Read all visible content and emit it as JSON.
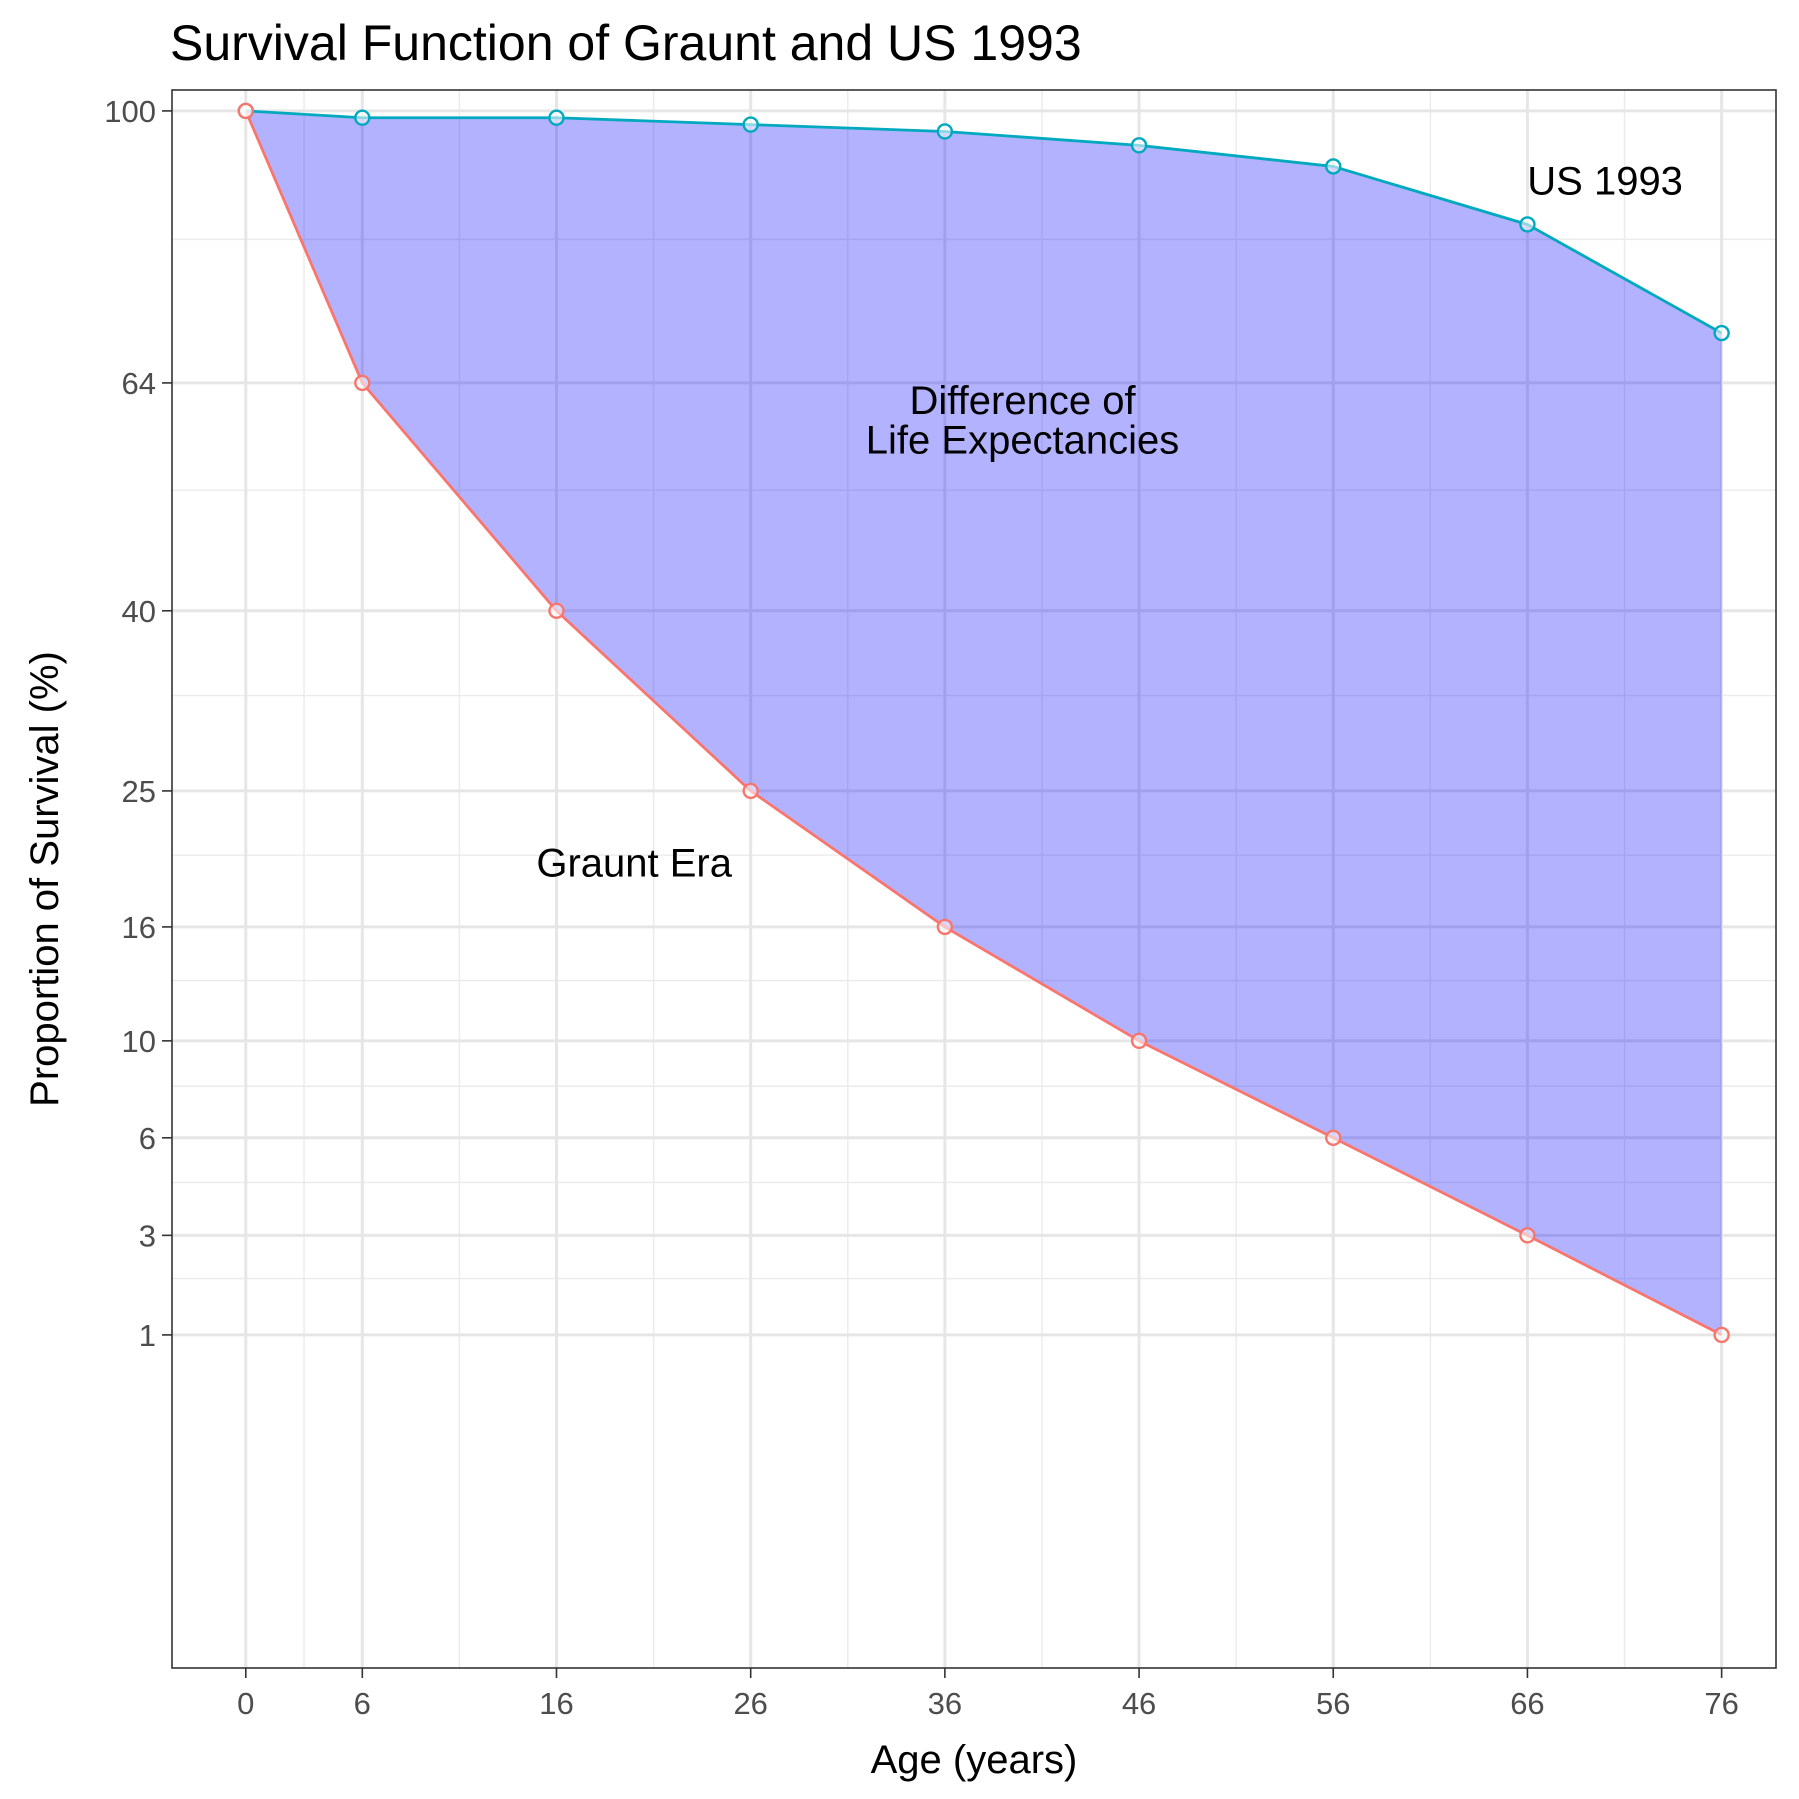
{
  "chart_data": {
    "type": "line",
    "title": "Survival Function of Graunt and US 1993",
    "xlabel": "Age (years)",
    "ylabel": "Proportion of Survival (%)",
    "x": [
      0,
      6,
      16,
      26,
      36,
      46,
      56,
      66,
      76
    ],
    "x_ticks": [
      0,
      6,
      16,
      26,
      36,
      46,
      56,
      66,
      76
    ],
    "y_ticks": [
      1,
      3,
      6,
      10,
      16,
      25,
      40,
      64,
      100
    ],
    "x_range": [
      -3.8,
      78.8
    ],
    "y_range": [
      -2.1,
      103.1
    ],
    "y_scale": "square root",
    "grid": true,
    "series": [
      {
        "name": "US 1993",
        "color": "#00a9bf",
        "values": [
          100,
          99,
          99,
          98,
          97,
          95,
          92,
          84,
          70
        ]
      },
      {
        "name": "Graunt Era",
        "color": "#f8766d",
        "values": [
          100,
          64,
          40,
          25,
          16,
          10,
          6,
          3,
          1
        ]
      }
    ],
    "fill_color": "#0000ff",
    "annotations": [
      {
        "text": "US 1993",
        "x": 70,
        "y": 90
      },
      {
        "text": "Graunt Era",
        "x": 20,
        "y": 20
      },
      {
        "text": "Difference of",
        "x": 40,
        "y": 62
      },
      {
        "text": "Life Expectancies",
        "x": 40,
        "y": 57.5
      }
    ]
  }
}
